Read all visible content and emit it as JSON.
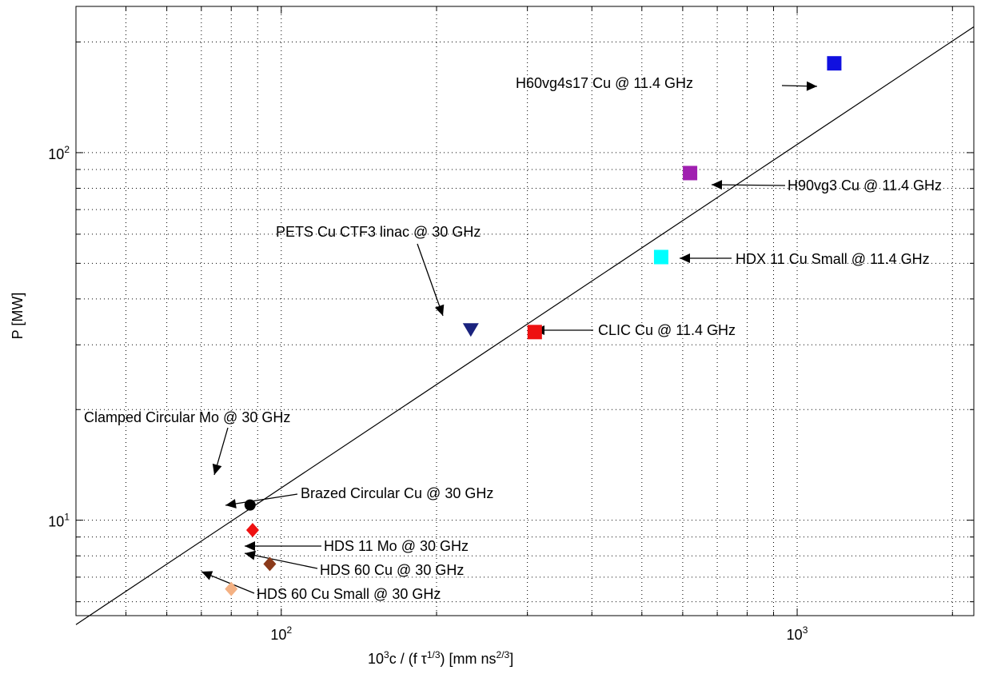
{
  "chart_data": {
    "type": "scatter",
    "x_scale": "log",
    "y_scale": "log",
    "xlim": [
      40,
      2200
    ],
    "ylim": [
      5.5,
      250
    ],
    "grid": true,
    "grid_style": "dotted",
    "xlabel_parts": {
      "base_pre": "10",
      "exp_a": "3",
      "mid": "c / (f τ",
      "exp_b": "1/3",
      "post": ") [mm ns",
      "exp_c": "2/3",
      "end": "]"
    },
    "ylabel": "P [MW]",
    "x_major_ticks": [
      {
        "value": 100,
        "base": "10",
        "exp": "2"
      },
      {
        "value": 1000,
        "base": "10",
        "exp": "3"
      }
    ],
    "y_major_ticks": [
      {
        "value": 10,
        "base": "10",
        "exp": "1"
      },
      {
        "value": 100,
        "base": "10",
        "exp": "2"
      }
    ],
    "fit_line": {
      "points": [
        [
          40,
          5.2
        ],
        [
          2200,
          220
        ]
      ],
      "color": "#000000"
    },
    "points": [
      {
        "name": "H60vg4s17 Cu @ 11.4 GHz",
        "x": 1180,
        "y": 175,
        "marker": "square",
        "color": "#1010e0"
      },
      {
        "name": "H90vg3 Cu @ 11.4 GHz",
        "x": 620,
        "y": 88,
        "marker": "square",
        "color": "#a020b0"
      },
      {
        "name": "HDX 11 Cu Small @ 11.4 GHz",
        "x": 545,
        "y": 52,
        "marker": "square",
        "color": "#00ffff"
      },
      {
        "name": "PETS Cu CTF3 linac @ 30 GHz",
        "x": 233,
        "y": 33,
        "marker": "triangle-down",
        "color": "#1a237e"
      },
      {
        "name": "CLIC Cu @ 11.4 GHz",
        "x": 310,
        "y": 32.5,
        "marker": "square",
        "color": "#ee1111"
      },
      {
        "name": "Clamped Circular Mo @ 30 GHz",
        "x": 87,
        "y": 11,
        "marker": "circle",
        "color": "#000000"
      },
      {
        "name": "Brazed Circular Cu @ 30 GHz",
        "x": 88,
        "y": 9.4,
        "marker": "diamond",
        "color": "#ee1111"
      },
      {
        "name": "HDS 11 Mo @ 30 GHz",
        "x": 95,
        "y": 7.6,
        "marker": "diamond",
        "color": "#8b3a1a"
      },
      {
        "name": "HDS 60 Cu @ 30 GHz",
        "x": 95,
        "y": 7.6,
        "marker": "diamond",
        "color": "#8b3a1a"
      },
      {
        "name": "HDS 60 Cu Small @ 30 GHz",
        "x": 80,
        "y": 6.5,
        "marker": "diamond",
        "color": "#f4b183"
      }
    ]
  }
}
